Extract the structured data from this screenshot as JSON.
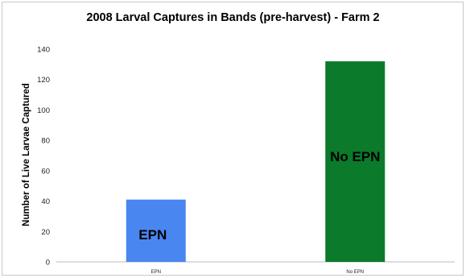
{
  "chart_data": {
    "type": "bar",
    "title": "2008 Larval Captures in Bands (pre-harvest) - Farm 2",
    "xlabel": "",
    "ylabel": "Number of Live Larvae Captured",
    "categories": [
      "EPN",
      "No EPN"
    ],
    "values": [
      41,
      132
    ],
    "colors": [
      "#4a86f0",
      "#0b7a2a"
    ],
    "bar_labels": [
      "EPN",
      "No EPN"
    ],
    "ylim": [
      0,
      140
    ],
    "yticks": [
      0,
      20,
      40,
      60,
      80,
      100,
      120,
      140
    ],
    "grid": false,
    "legend": "none"
  }
}
